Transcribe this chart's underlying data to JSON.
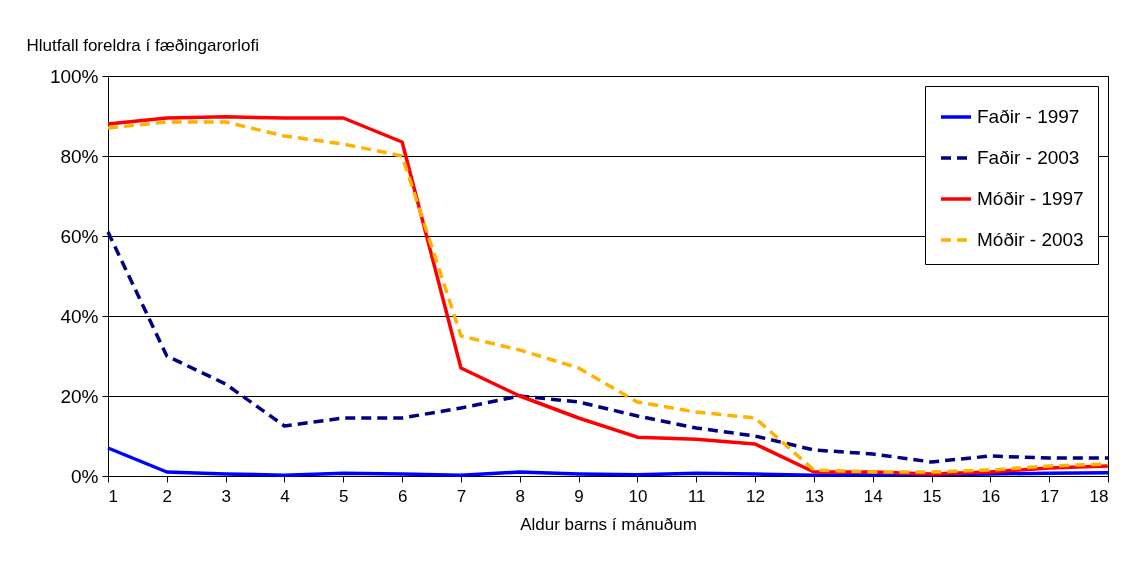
{
  "chart_data": {
    "type": "line",
    "ylabel": "Hlutfall foreldra í fæðingarorlofi",
    "xlabel": "Aldur barns í mánuðum",
    "x": [
      1,
      2,
      3,
      4,
      5,
      6,
      7,
      8,
      9,
      10,
      11,
      12,
      13,
      14,
      15,
      16,
      17,
      18
    ],
    "xlim": [
      1,
      18
    ],
    "xticks": [
      1,
      2,
      3,
      4,
      5,
      6,
      7,
      8,
      9,
      10,
      11,
      12,
      13,
      14,
      15,
      16,
      17,
      18
    ],
    "ylim": [
      0,
      100
    ],
    "yticks": [
      {
        "value": 0,
        "label": "0%"
      },
      {
        "value": 20,
        "label": "20%"
      },
      {
        "value": 40,
        "label": "40%"
      },
      {
        "value": 60,
        "label": "60%"
      },
      {
        "value": 80,
        "label": "80%"
      },
      {
        "value": 100,
        "label": "100%"
      }
    ],
    "grid": "y",
    "legend": "top right",
    "marker": "none",
    "series": [
      {
        "name": "Faðir - 1997",
        "color": "#0000ff",
        "line_style": "solid",
        "values": [
          7,
          1,
          0.5,
          0.2,
          0.7,
          0.5,
          0.2,
          1,
          0.5,
          0.3,
          0.7,
          0.5,
          0.2,
          0.3,
          0.3,
          0.5,
          0.7,
          0.8
        ]
      },
      {
        "name": "Faðir - 2003",
        "color": "#000080",
        "line_style": "dashed",
        "values": [
          61,
          30,
          23,
          12.5,
          14.5,
          14.5,
          17,
          20,
          18.5,
          15,
          12,
          10,
          6.5,
          5.5,
          3.5,
          5,
          4.5,
          4.5
        ]
      },
      {
        "name": "Móðir - 1997",
        "color": "#ff0000",
        "line_style": "solid",
        "values": [
          88,
          89.5,
          89.8,
          89.5,
          89.5,
          83.5,
          27,
          20,
          14.5,
          9.7,
          9.2,
          8,
          1,
          1,
          0.5,
          1,
          2,
          2.5
        ]
      },
      {
        "name": "Móðir - 2003",
        "color": "#ffb300",
        "line_style": "dashed",
        "values": [
          87,
          88.5,
          88.5,
          85,
          83,
          80,
          35,
          31.5,
          27,
          18.5,
          16,
          14.5,
          1.5,
          1,
          1,
          1.5,
          2.5,
          3
        ]
      }
    ]
  }
}
